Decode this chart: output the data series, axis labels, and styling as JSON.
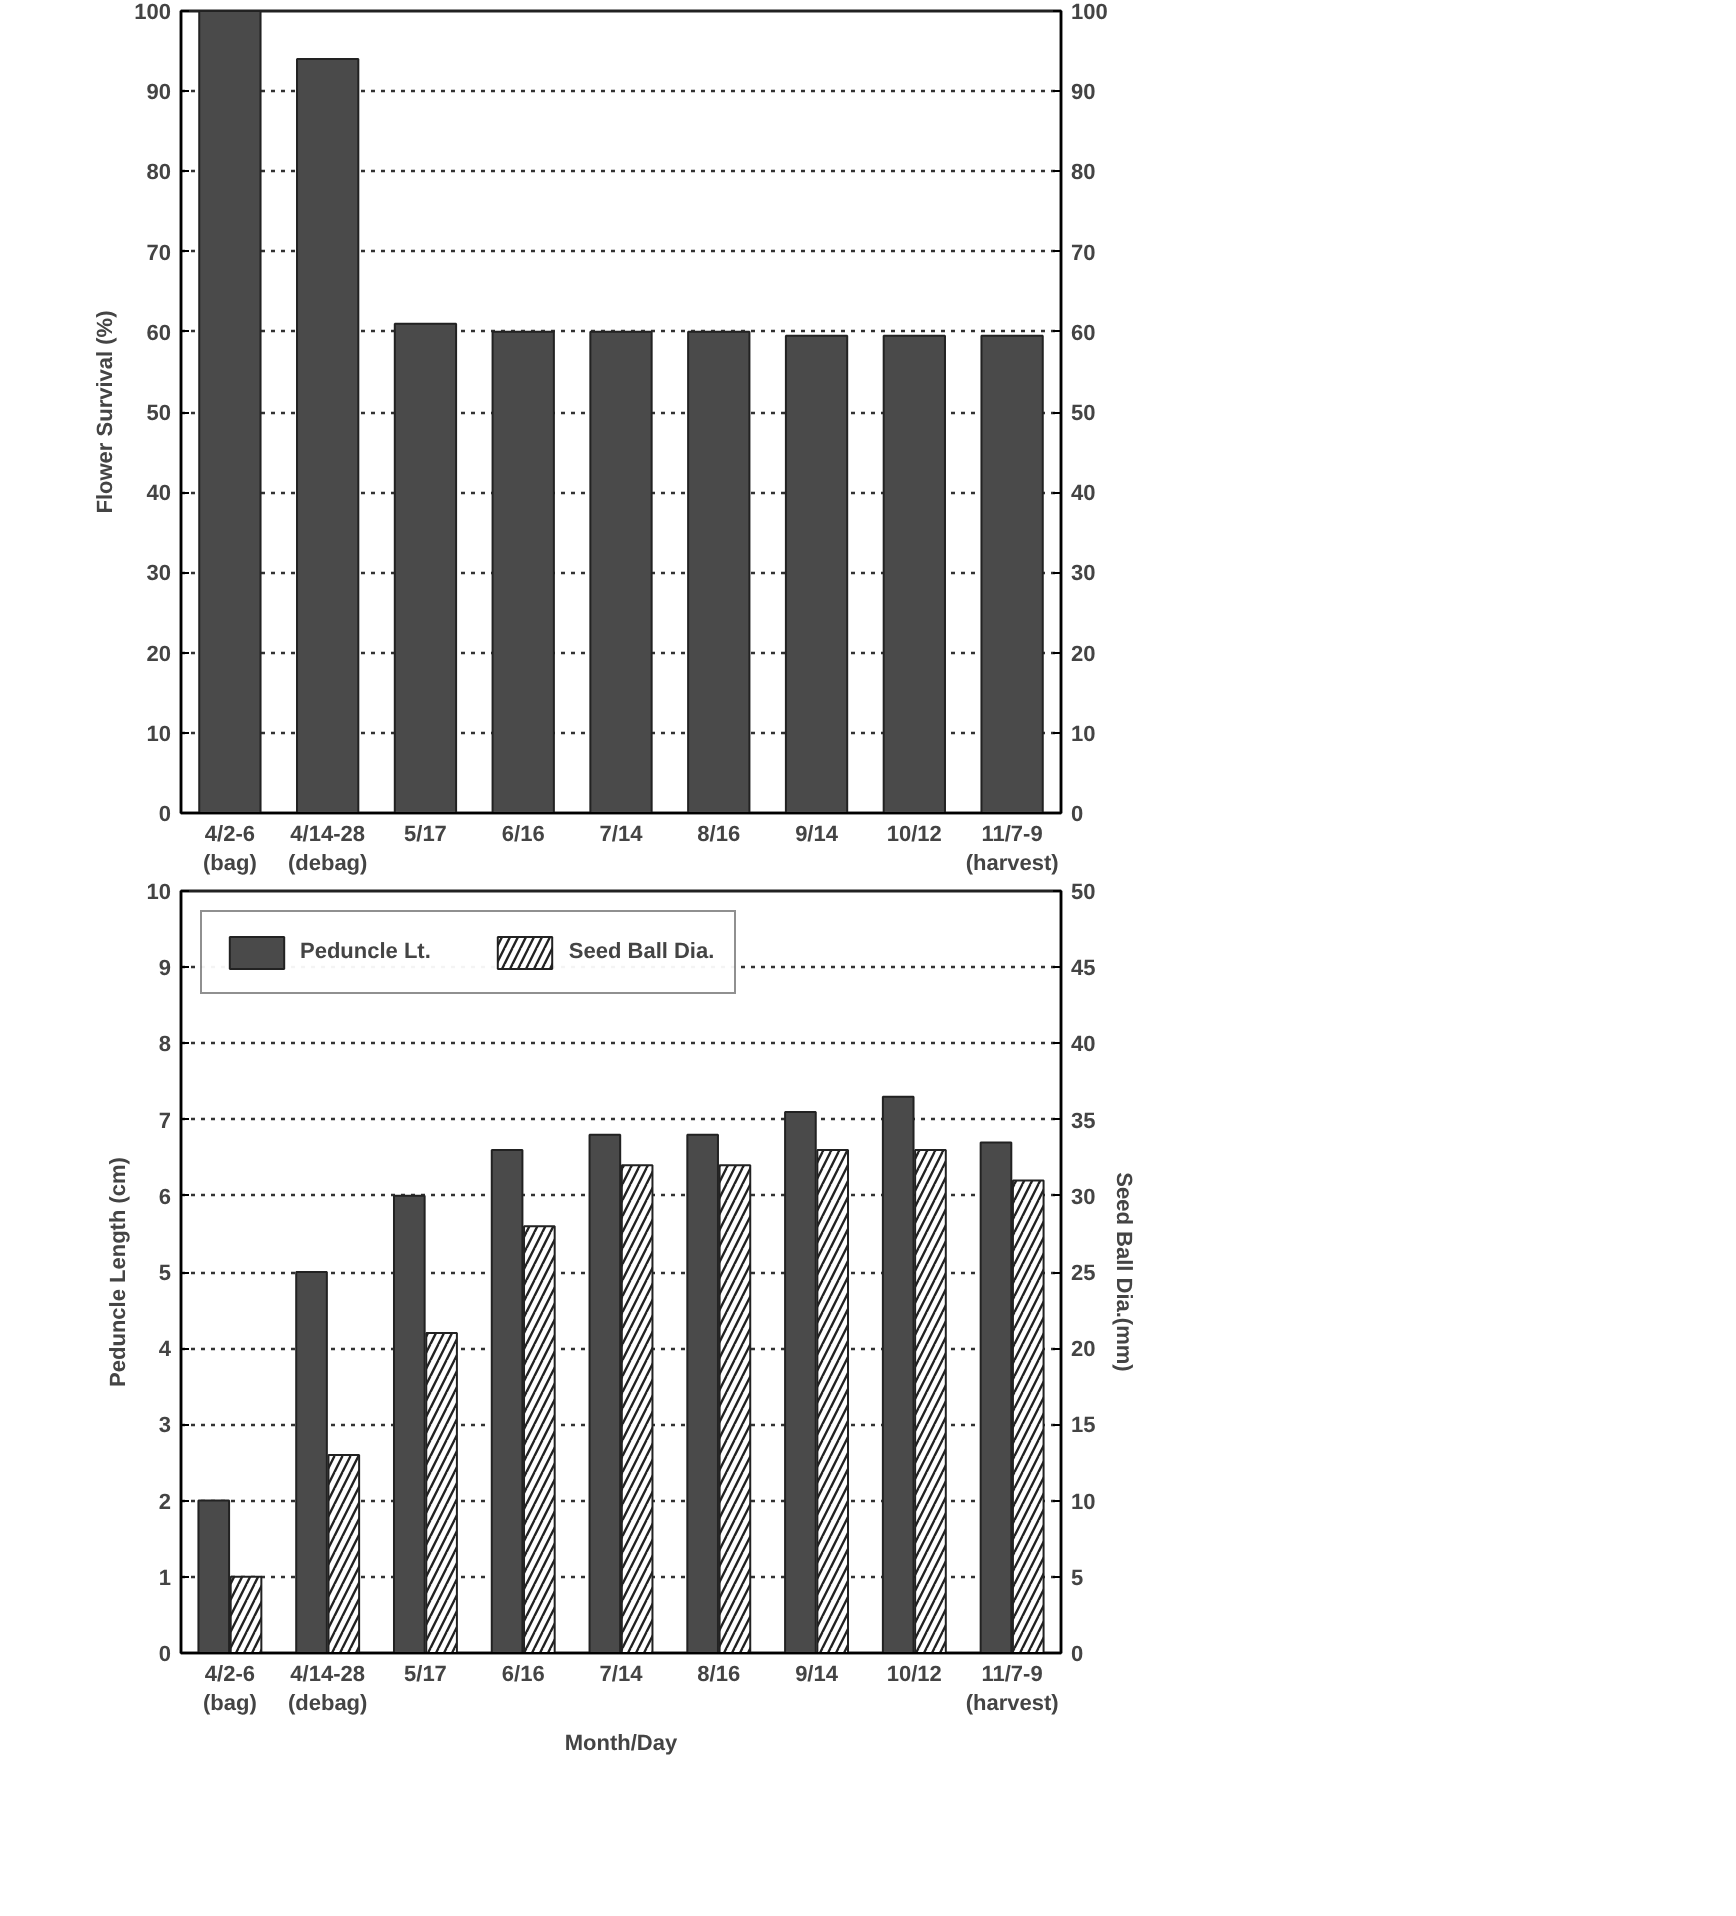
{
  "chart_data": [
    {
      "type": "bar",
      "ylabel": "Flower Survival (%)",
      "categories": [
        "4/2-6\n(bag)",
        "4/14-28\n(debag)",
        "5/17",
        "6/16",
        "7/14",
        "8/16",
        "9/14",
        "10/12",
        "11/7-9\n(harvest)"
      ],
      "series": [
        {
          "color": "#4a4a4a",
          "values": [
            100,
            94,
            61,
            60,
            60,
            60,
            59.5,
            59.5,
            59.5
          ]
        }
      ],
      "ylim": [
        0,
        100
      ],
      "yticks": [
        0,
        10,
        20,
        30,
        40,
        50,
        60,
        70,
        80,
        90,
        100
      ],
      "y2lim": [
        0,
        100
      ],
      "y2ticks": [
        0,
        10,
        20,
        30,
        40,
        50,
        60,
        70,
        80,
        90,
        100
      ],
      "grid": "y",
      "legend": false
    },
    {
      "type": "bar",
      "ylabel": "Peduncle Length (cm)",
      "y2label": "Seed Ball Dia.(mm)",
      "xlabel": "Month/Day",
      "categories": [
        "4/2-6\n(bag)",
        "4/14-28\n(debag)",
        "5/17",
        "6/16",
        "7/14",
        "8/16",
        "9/14",
        "10/12",
        "11/7-9\n(harvest)"
      ],
      "series": [
        {
          "name": "Peduncle Lt.",
          "color": "#4a4a4a",
          "values": [
            2,
            5,
            6,
            6.6,
            6.8,
            6.8,
            7.1,
            7.3,
            6.7
          ]
        },
        {
          "name": "Seed Ball Dia.",
          "color": "#ffffff",
          "axis": "y2",
          "values": [
            5,
            13,
            21,
            28,
            32,
            32,
            33,
            33,
            31
          ]
        }
      ],
      "ylim": [
        0,
        10
      ],
      "yticks": [
        0,
        1,
        2,
        3,
        4,
        5,
        6,
        7,
        8,
        9,
        10
      ],
      "y2lim": [
        0,
        50
      ],
      "y2ticks": [
        0,
        5,
        10,
        15,
        20,
        25,
        30,
        35,
        40,
        45,
        50
      ],
      "grid": "y",
      "legend": "top left"
    }
  ]
}
